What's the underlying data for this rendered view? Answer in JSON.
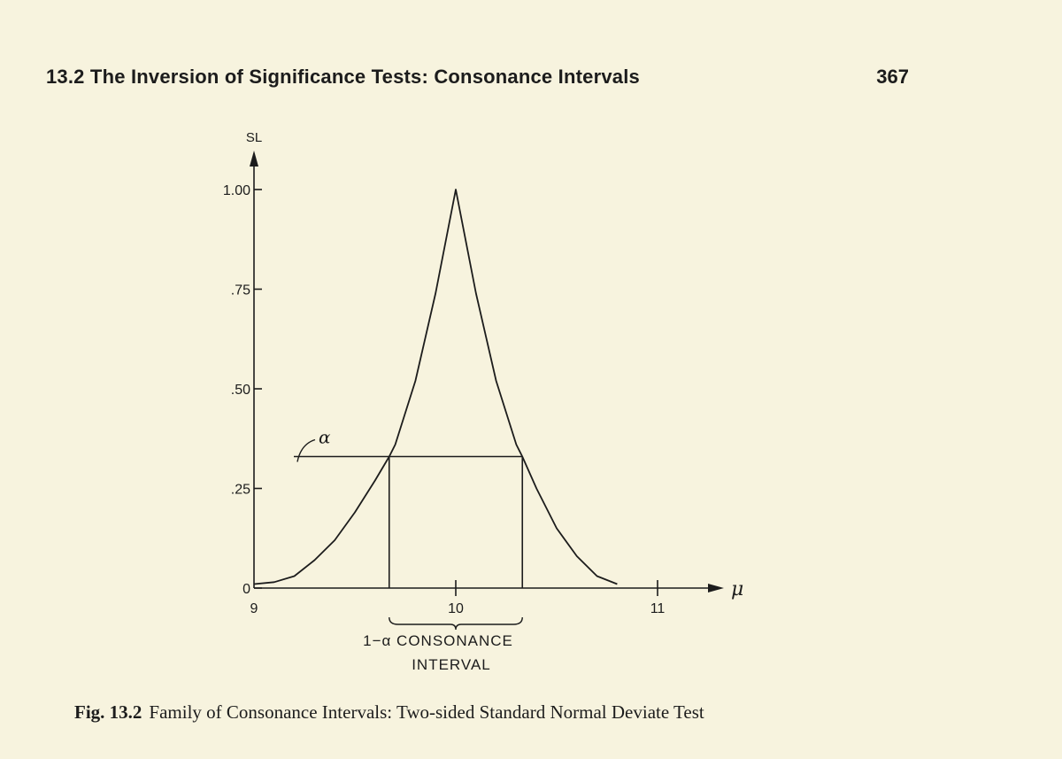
{
  "header": {
    "running_head": "13.2 The Inversion of Significance Tests: Consonance Intervals",
    "page_number": "367"
  },
  "caption": {
    "label": "Fig. 13.2",
    "text": "Family of Consonance Intervals: Two-sided Standard Normal Deviate Test"
  },
  "colors": {
    "ink": "#1c1c1c",
    "paper": "#f7f3de"
  },
  "chart_data": {
    "type": "line",
    "title": "",
    "xlabel": "μ",
    "ylabel": "SL",
    "xlim": [
      9,
      11.25
    ],
    "ylim": [
      0,
      1.0
    ],
    "x_ticks": [
      {
        "value": 9,
        "label": "9"
      },
      {
        "value": 10,
        "label": "10"
      },
      {
        "value": 11,
        "label": "11"
      }
    ],
    "y_ticks": [
      {
        "value": 0,
        "label": "0"
      },
      {
        "value": 0.25,
        "label": ".25"
      },
      {
        "value": 0.5,
        "label": ".50"
      },
      {
        "value": 0.75,
        "label": ".75"
      },
      {
        "value": 1.0,
        "label": "1.00"
      }
    ],
    "grid": false,
    "series": [
      {
        "x": [
          9.0,
          9.1,
          9.2,
          9.3,
          9.4,
          9.5,
          9.6,
          9.67,
          9.7,
          9.8,
          9.9,
          10.0,
          10.1,
          10.2,
          10.3,
          10.33,
          10.4,
          10.5,
          10.6,
          10.7,
          10.8
        ],
        "y": [
          0.01,
          0.015,
          0.03,
          0.07,
          0.12,
          0.19,
          0.27,
          0.33,
          0.36,
          0.52,
          0.74,
          1.0,
          0.74,
          0.52,
          0.36,
          0.33,
          0.25,
          0.15,
          0.08,
          0.03,
          0.01
        ]
      }
    ],
    "alpha_level": 0.33,
    "interval": [
      9.67,
      10.33
    ],
    "annotations": {
      "alpha_label": "α",
      "interval_label_line1": "1−α CONSONANCE",
      "interval_label_line2": "INTERVAL"
    }
  }
}
